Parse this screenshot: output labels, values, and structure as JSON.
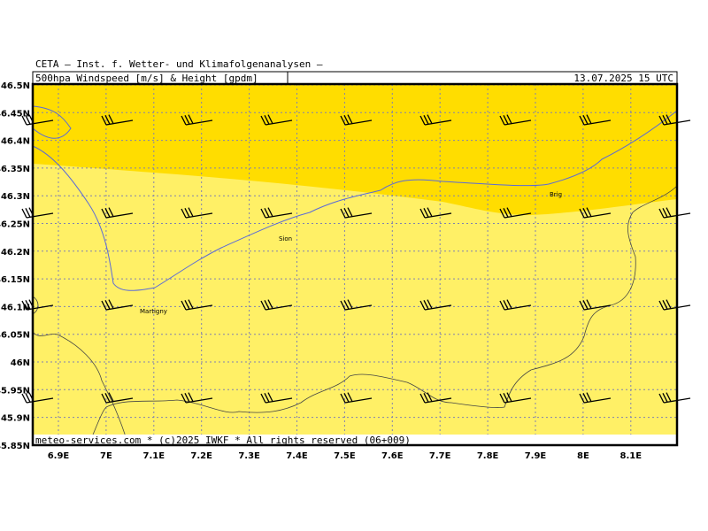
{
  "header": {
    "title": "CETA – Inst. f. Wetter- und Klimafolgenanalysen –",
    "product": "500hpa_Windspeed_[m/s]_&_Height_[gpdm]",
    "valid_time": "13.07.2025 15 UTC"
  },
  "axes": {
    "lon_ticks": [
      "6.9E",
      "7E",
      "7.1E",
      "7.2E",
      "7.3E",
      "7.4E",
      "7.5E",
      "7.6E",
      "7.7E",
      "7.8E",
      "7.9E",
      "8E",
      "8.1E"
    ],
    "lat_ticks": [
      "46.5N",
      "46.45N",
      "46.4N",
      "46.35N",
      "46.3N",
      "46.25N",
      "46.2N",
      "46.15N",
      "46.1N",
      "46.05N",
      "46N",
      "45.95N",
      "45.9N",
      "45.85N"
    ]
  },
  "places": [
    "Brig",
    "Sion",
    "Martigny"
  ],
  "footer": "meteo-services.com * (c)2025 IWKF * All rights reserved (06+009)"
}
